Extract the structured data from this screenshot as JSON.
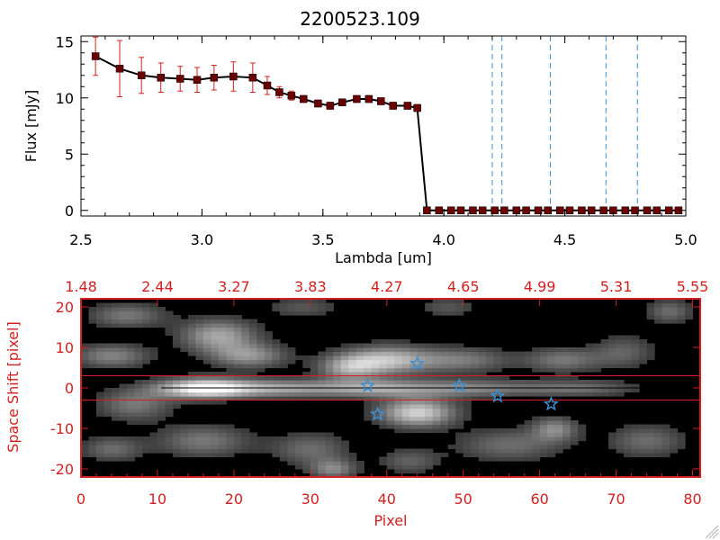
{
  "chart_data": [
    {
      "type": "scatter",
      "title": "2200523.109",
      "xlabel": "Lambda [um]",
      "ylabel": "Flux [mJy]",
      "xlim": [
        2.5,
        5.0
      ],
      "ylim": [
        -0.5,
        15.5
      ],
      "x_ticks": [
        "2.5",
        "3.0",
        "3.5",
        "4.0",
        "4.5",
        "5.0"
      ],
      "y_ticks": [
        "0",
        "5",
        "10",
        "15"
      ],
      "colors": {
        "line": "#000000",
        "marker": "#6a0000",
        "errorbar": "#d42020",
        "reference_line": "#3d8fd0"
      },
      "series": [
        {
          "x": [
            2.56,
            2.66,
            2.75,
            2.83,
            2.91,
            2.98,
            3.05,
            3.13,
            3.21,
            3.27,
            3.32,
            3.37,
            3.42,
            3.48,
            3.53,
            3.58,
            3.64,
            3.69,
            3.74,
            3.79,
            3.85,
            3.89,
            3.93,
            3.98,
            4.03,
            4.07,
            4.12,
            4.16,
            4.21,
            4.25,
            4.3,
            4.34,
            4.39,
            4.43,
            4.48,
            4.52,
            4.57,
            4.61,
            4.66,
            4.7,
            4.75,
            4.79,
            4.84,
            4.88,
            4.93,
            4.97
          ],
          "y": [
            13.7,
            12.6,
            12.0,
            11.8,
            11.7,
            11.6,
            11.8,
            11.9,
            11.8,
            11.1,
            10.5,
            10.2,
            9.9,
            9.5,
            9.3,
            9.6,
            9.9,
            9.9,
            9.7,
            9.3,
            9.3,
            9.1,
            0,
            0,
            0,
            0,
            0,
            0,
            0,
            0,
            0,
            0,
            0,
            0,
            0,
            0,
            0,
            0,
            0,
            0,
            0,
            0,
            0,
            0,
            0,
            0
          ],
          "yerr": [
            1.7,
            2.5,
            1.6,
            1.3,
            1.1,
            1.1,
            1.1,
            1.3,
            1.3,
            0.8,
            0.5,
            0.4,
            0.3,
            0.3,
            0.3,
            0.3,
            0.3,
            0.3,
            0.3,
            0.3,
            0.3,
            0.3,
            0,
            0,
            0,
            0,
            0,
            0,
            0,
            0,
            0,
            0,
            0,
            0,
            0,
            0,
            0,
            0,
            0,
            0,
            0,
            0,
            0,
            0,
            0,
            0
          ]
        }
      ],
      "reference_lines_x": [
        4.2,
        4.24,
        4.44,
        4.67,
        4.8
      ]
    },
    {
      "type": "heatmap",
      "xlabel": "Pixel",
      "ylabel": "Space Shift [pixel]",
      "xlim": [
        0,
        81
      ],
      "ylim": [
        -22,
        22
      ],
      "x_ticks": [
        "0",
        "10",
        "20",
        "30",
        "40",
        "50",
        "60",
        "70",
        "80"
      ],
      "y_ticks": [
        "-20",
        "-10",
        "0",
        "10",
        "20"
      ],
      "top_ticks": [
        "1.48",
        "2.44",
        "3.27",
        "3.83",
        "4.27",
        "4.65",
        "4.99",
        "5.31",
        "5.55"
      ],
      "colors": {
        "axis": "#d42020",
        "star": "#3d8fd0",
        "trace": "#000000"
      },
      "horizontal_lines_y": [
        3,
        -3
      ],
      "trace_y": 0,
      "stars": [
        {
          "x": 37.5,
          "y": 0.5
        },
        {
          "x": 38.8,
          "y": -6.5
        },
        {
          "x": 44.0,
          "y": 6.0
        },
        {
          "x": 49.5,
          "y": 0.5
        },
        {
          "x": 54.5,
          "y": -2.0
        },
        {
          "x": 61.5,
          "y": -4.0
        }
      ],
      "blobs": [
        {
          "x": 16,
          "y": 0,
          "sx": 6,
          "sy": 2.4,
          "v": 1.0
        },
        {
          "x": 26,
          "y": 0,
          "sx": 8,
          "sy": 2.2,
          "v": 0.55
        },
        {
          "x": 38,
          "y": 0,
          "sx": 7,
          "sy": 2.2,
          "v": 0.5
        },
        {
          "x": 50,
          "y": 0,
          "sx": 9,
          "sy": 2.2,
          "v": 0.45
        },
        {
          "x": 65,
          "y": 0,
          "sx": 8,
          "sy": 2.0,
          "v": 0.35
        },
        {
          "x": 44,
          "y": -6,
          "sx": 5,
          "sy": 3.5,
          "v": 0.8
        },
        {
          "x": 40,
          "y": 7,
          "sx": 6,
          "sy": 3.5,
          "v": 0.7
        },
        {
          "x": 50,
          "y": 7,
          "sx": 6,
          "sy": 3,
          "v": 0.4
        },
        {
          "x": 35,
          "y": 5,
          "sx": 4,
          "sy": 3,
          "v": 0.5
        },
        {
          "x": 18,
          "y": 13,
          "sx": 5,
          "sy": 4,
          "v": 0.6
        },
        {
          "x": 22,
          "y": 8,
          "sx": 5,
          "sy": 3,
          "v": 0.5
        },
        {
          "x": 6,
          "y": 18,
          "sx": 5,
          "sy": 3,
          "v": 0.4
        },
        {
          "x": 4,
          "y": 8,
          "sx": 5,
          "sy": 3,
          "v": 0.45
        },
        {
          "x": 7,
          "y": -4,
          "sx": 5,
          "sy": 4,
          "v": 0.4
        },
        {
          "x": 4,
          "y": -15,
          "sx": 4,
          "sy": 3,
          "v": 0.35
        },
        {
          "x": 16,
          "y": -13,
          "sx": 6,
          "sy": 4,
          "v": 0.4
        },
        {
          "x": 30,
          "y": -15,
          "sx": 5,
          "sy": 4,
          "v": 0.35
        },
        {
          "x": 33,
          "y": -20,
          "sx": 3,
          "sy": 2.5,
          "v": 0.45
        },
        {
          "x": 43,
          "y": -18,
          "sx": 4,
          "sy": 3,
          "v": 0.3
        },
        {
          "x": 56,
          "y": -14,
          "sx": 7,
          "sy": 4,
          "v": 0.35
        },
        {
          "x": 62,
          "y": -10,
          "sx": 3,
          "sy": 3,
          "v": 0.45
        },
        {
          "x": 74,
          "y": -13,
          "sx": 5,
          "sy": 4,
          "v": 0.35
        },
        {
          "x": 63,
          "y": 7,
          "sx": 5,
          "sy": 3,
          "v": 0.4
        },
        {
          "x": 71,
          "y": 9,
          "sx": 4,
          "sy": 4,
          "v": 0.3
        },
        {
          "x": 77,
          "y": 19,
          "sx": 3,
          "sy": 3,
          "v": 0.35
        },
        {
          "x": 29,
          "y": 20,
          "sx": 5,
          "sy": 2.5,
          "v": 0.25
        },
        {
          "x": 48,
          "y": 20,
          "sx": 4,
          "sy": 2.5,
          "v": 0.25
        }
      ]
    }
  ]
}
